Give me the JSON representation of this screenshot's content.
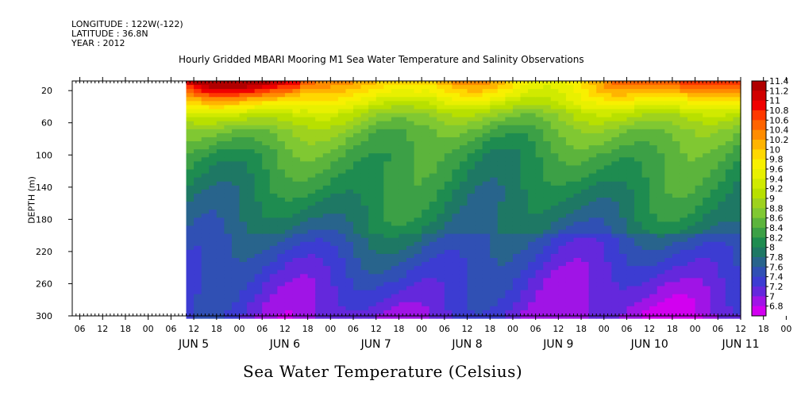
{
  "header": {
    "longitude": "LONGITUDE : 122W(-122)",
    "latitude": "LATITUDE : 36.8N",
    "year": "YEAR : 2012"
  },
  "chart_data": {
    "type": "heatmap",
    "title": "Hourly Gridded MBARI Mooring M1 Sea Water Temperature and Salinity Observations",
    "xlabel": "Sea Water Temperature (Celsius)",
    "ylabel": "DEPTH (m)",
    "y_ticks": [
      20,
      60,
      100,
      140,
      180,
      220,
      260,
      300
    ],
    "y_range": [
      300,
      8
    ],
    "y_inverted": true,
    "x_hour_ticks": [
      "06",
      "12",
      "18",
      "00",
      "06",
      "12",
      "18",
      "00",
      "06",
      "12",
      "18",
      "00",
      "06",
      "12",
      "18",
      "00",
      "06",
      "12",
      "18",
      "00",
      "06",
      "12",
      "18",
      "00",
      "06",
      "12",
      "18",
      "00",
      "06",
      "12",
      "18",
      "00"
    ],
    "x_day_labels": [
      "JUN  5",
      "JUN  6",
      "JUN  7",
      "JUN  8",
      "JUN  9",
      "JUN 10",
      "JUN 11"
    ],
    "x_range": [
      "2012-06-04T04:00",
      "2012-06-11T12:00"
    ],
    "data_start": "2012-06-05T10:00",
    "colorbar_levels": [
      "11.4",
      "11.2",
      "11",
      "10.8",
      "10.6",
      "10.4",
      "10.2",
      "10",
      "9.8",
      "9.6",
      "9.4",
      "9.2",
      "9",
      "8.8",
      "8.6",
      "8.4",
      "8.2",
      "8",
      "7.8",
      "7.6",
      "7.4",
      "7.2",
      "7",
      "6.8"
    ],
    "colorbar_colors": [
      "#b00000",
      "#d00000",
      "#f00000",
      "#ff3800",
      "#ff6400",
      "#ff8c00",
      "#ffb400",
      "#ffd800",
      "#f8f000",
      "#e8f000",
      "#d0ea00",
      "#b8e000",
      "#9ed21e",
      "#80c832",
      "#5cb43c",
      "#3ca046",
      "#1e8c50",
      "#1e7864",
      "#28648c",
      "#3050b4",
      "#3c3cd2",
      "#6428dc",
      "#a014e6",
      "#d200f0"
    ],
    "depth_profile_mean": [
      {
        "depth": 10,
        "temp": 10.6
      },
      {
        "depth": 30,
        "temp": 9.9
      },
      {
        "depth": 50,
        "temp": 9.2
      },
      {
        "depth": 70,
        "temp": 8.8
      },
      {
        "depth": 100,
        "temp": 8.5
      },
      {
        "depth": 140,
        "temp": 8.3
      },
      {
        "depth": 180,
        "temp": 8.1
      },
      {
        "depth": 220,
        "temp": 7.8
      },
      {
        "depth": 260,
        "temp": 7.55
      },
      {
        "depth": 300,
        "temp": 7.35
      }
    ]
  }
}
